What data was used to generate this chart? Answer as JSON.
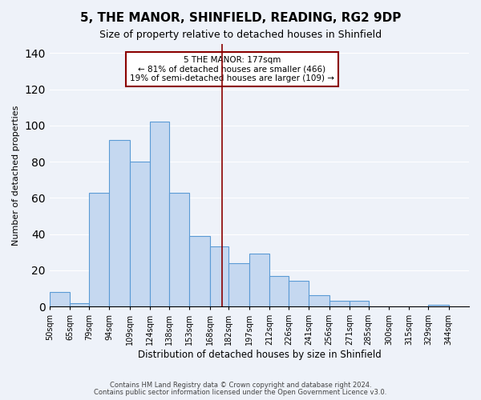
{
  "title": "5, THE MANOR, SHINFIELD, READING, RG2 9DP",
  "subtitle": "Size of property relative to detached houses in Shinfield",
  "xlabel": "Distribution of detached houses by size in Shinfield",
  "ylabel": "Number of detached properties",
  "bin_labels": [
    "50sqm",
    "65sqm",
    "79sqm",
    "94sqm",
    "109sqm",
    "124sqm",
    "138sqm",
    "153sqm",
    "168sqm",
    "182sqm",
    "197sqm",
    "212sqm",
    "226sqm",
    "241sqm",
    "256sqm",
    "271sqm",
    "285sqm",
    "300sqm",
    "315sqm",
    "329sqm",
    "344sqm"
  ],
  "bin_edges": [
    50,
    65,
    79,
    94,
    109,
    124,
    138,
    153,
    168,
    182,
    197,
    212,
    226,
    241,
    256,
    271,
    285,
    300,
    315,
    329,
    344
  ],
  "bar_heights": [
    8,
    2,
    63,
    92,
    80,
    102,
    63,
    39,
    33,
    24,
    29,
    17,
    14,
    6,
    3,
    3,
    0,
    0,
    0,
    1
  ],
  "bar_color": "#c5d8f0",
  "bar_edge_color": "#5b9bd5",
  "vline_x": 177,
  "vline_color": "#8b0000",
  "annotation_text": "5 THE MANOR: 177sqm\n← 81% of detached houses are smaller (466)\n19% of semi-detached houses are larger (109) →",
  "annotation_box_color": "#ffffff",
  "annotation_box_edge": "#8b0000",
  "ylim": [
    0,
    145
  ],
  "yticks": [
    0,
    20,
    40,
    60,
    80,
    100,
    120,
    140
  ],
  "bg_color": "#eef2f9",
  "grid_color": "#ffffff",
  "footnote1": "Contains HM Land Registry data © Crown copyright and database right 2024.",
  "footnote2": "Contains public sector information licensed under the Open Government Licence v3.0."
}
